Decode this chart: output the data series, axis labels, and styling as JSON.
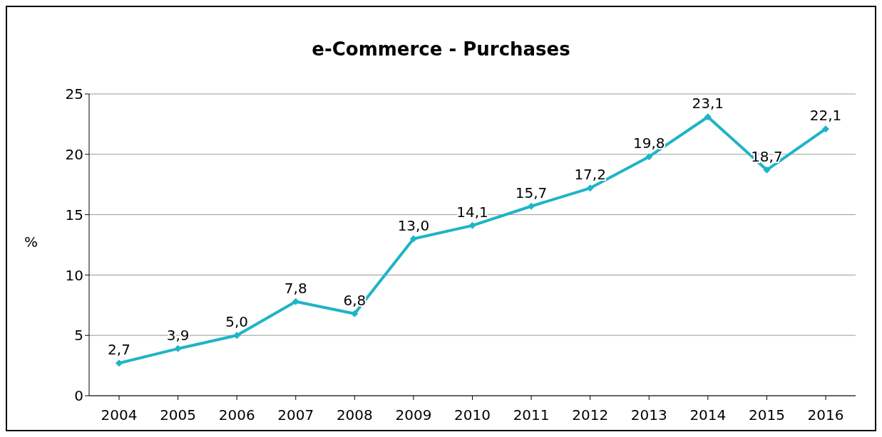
{
  "chart_data": {
    "type": "line",
    "title": "e-Commerce - Purchases",
    "ylabel": "%",
    "categories": [
      "2004",
      "2005",
      "2006",
      "2007",
      "2008",
      "2009",
      "2010",
      "2011",
      "2012",
      "2013",
      "2014",
      "2015",
      "2016"
    ],
    "series": [
      {
        "color": "#1fb4c6",
        "values": [
          2.7,
          3.9,
          5.0,
          7.8,
          6.8,
          13.0,
          14.1,
          15.7,
          17.2,
          19.8,
          23.1,
          18.7,
          22.1
        ],
        "value_labels": [
          "2,7",
          "3,9",
          "5,0",
          "7,8",
          "6,8",
          "13,0",
          "14,1",
          "15,7",
          "17,2",
          "19,8",
          "23,1",
          "18,7",
          "22,1"
        ]
      }
    ],
    "ylim": [
      0,
      25
    ],
    "yticks": [
      0,
      5,
      10,
      15,
      20,
      25
    ],
    "grid": "y",
    "legend": false,
    "marker": "diamond",
    "line_style": "solid"
  }
}
